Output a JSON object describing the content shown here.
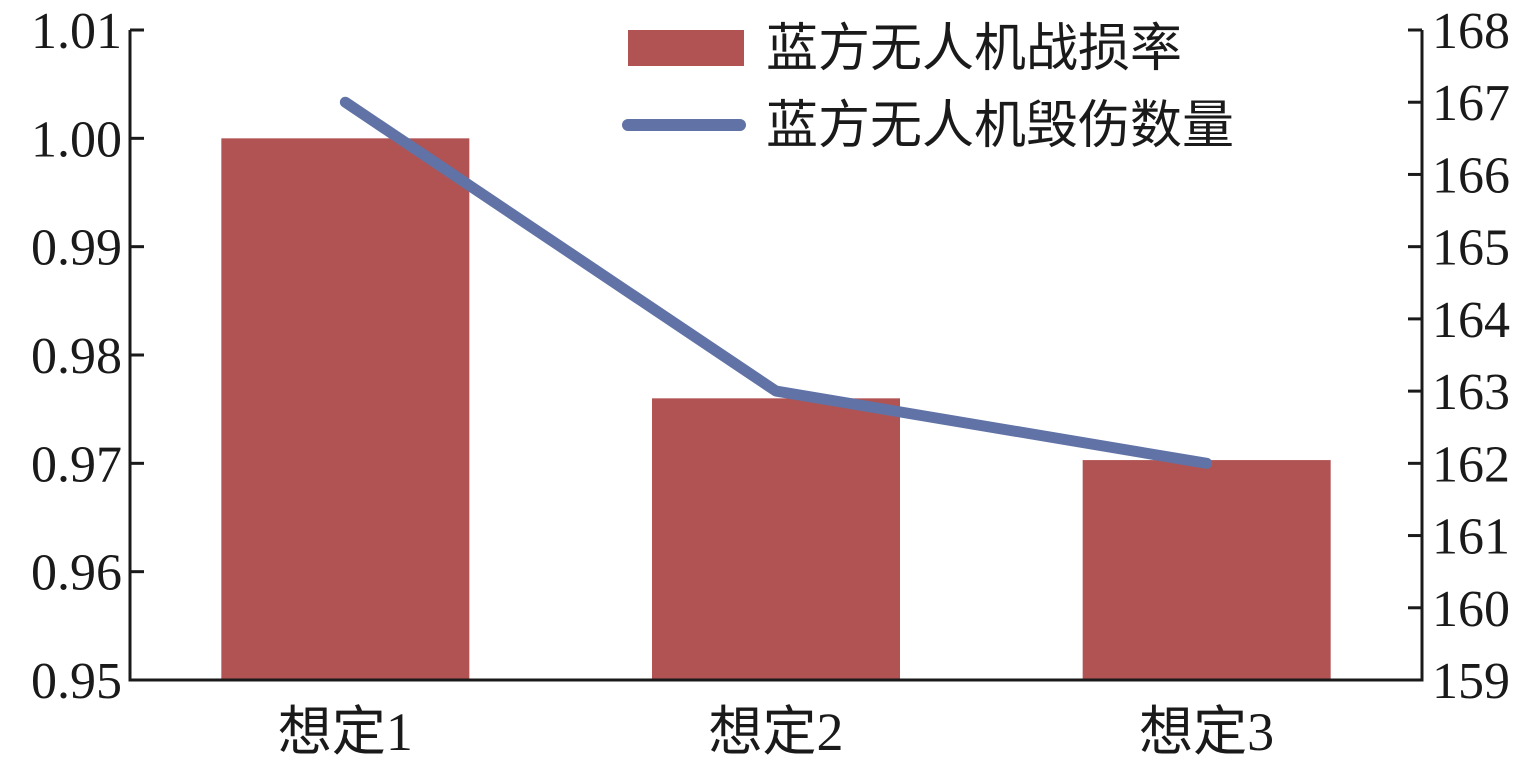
{
  "chart_data": {
    "type": "bar+line",
    "categories": [
      "想定1",
      "想定2",
      "想定3"
    ],
    "series": [
      {
        "name": "蓝方无人机战损率",
        "kind": "bar",
        "axis": "left",
        "color": "#b05352",
        "values": [
          1.0,
          0.976,
          0.9703
        ]
      },
      {
        "name": "蓝方无人机毁伤数量",
        "kind": "line",
        "axis": "right",
        "color": "#6173a6",
        "values": [
          167,
          163,
          162
        ]
      }
    ],
    "left_axis": {
      "ylim": [
        0.95,
        1.01
      ],
      "ticks": [
        "0.95",
        "0.96",
        "0.97",
        "0.98",
        "0.99",
        "1.00",
        "1.01"
      ]
    },
    "right_axis": {
      "ylim": [
        159,
        168
      ],
      "ticks": [
        "159",
        "160",
        "161",
        "162",
        "163",
        "164",
        "165",
        "166",
        "167",
        "168"
      ]
    },
    "legend_position": "top-right",
    "grid": false
  }
}
